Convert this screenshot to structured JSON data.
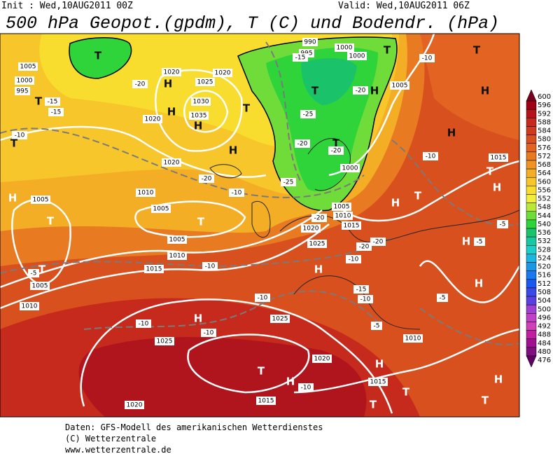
{
  "header": {
    "init": "Init : Wed,10AUG2011 00Z",
    "valid": "Valid: Wed,10AUG2011 06Z",
    "title": "500 hPa Geopot.(gpdm), T (C) und Bodendr. (hPa)"
  },
  "colorbar": [
    {
      "value": 600,
      "color": "#7a0020"
    },
    {
      "value": 596,
      "color": "#9e0016"
    },
    {
      "value": 592,
      "color": "#b5121b"
    },
    {
      "value": 588,
      "color": "#c62a1c"
    },
    {
      "value": 584,
      "color": "#d03a1e"
    },
    {
      "value": 580,
      "color": "#d9501f"
    },
    {
      "value": 576,
      "color": "#e26322"
    },
    {
      "value": 572,
      "color": "#e87a22"
    },
    {
      "value": 568,
      "color": "#ef9424"
    },
    {
      "value": 564,
      "color": "#f4ae26"
    },
    {
      "value": 560,
      "color": "#f7c62a"
    },
    {
      "value": 556,
      "color": "#f8dd2e"
    },
    {
      "value": 552,
      "color": "#f2ef3a"
    },
    {
      "value": 548,
      "color": "#b8e83a"
    },
    {
      "value": 544,
      "color": "#6fdc3a"
    },
    {
      "value": 540,
      "color": "#2ed43a"
    },
    {
      "value": 536,
      "color": "#1ac36a"
    },
    {
      "value": 532,
      "color": "#18c8a0"
    },
    {
      "value": 528,
      "color": "#1ad0c8"
    },
    {
      "value": 524,
      "color": "#1ab8e0"
    },
    {
      "value": 520,
      "color": "#1a98e8"
    },
    {
      "value": 516,
      "color": "#1a78f0"
    },
    {
      "value": 512,
      "color": "#1a58f0"
    },
    {
      "value": 508,
      "color": "#3a48e8"
    },
    {
      "value": 504,
      "color": "#5a40e0"
    },
    {
      "value": 500,
      "color": "#a040d0"
    },
    {
      "value": 496,
      "color": "#c040c8"
    },
    {
      "value": 492,
      "color": "#d040b8"
    },
    {
      "value": 488,
      "color": "#c020a0"
    },
    {
      "value": 484,
      "color": "#a01090"
    },
    {
      "value": 480,
      "color": "#801080"
    },
    {
      "value": 476,
      "color": "#600060"
    }
  ],
  "map": {
    "labels": [
      "T",
      "1005",
      "1000",
      "995",
      "T",
      "-15",
      "-15",
      "1020",
      "H",
      "1025",
      "1020",
      "-20",
      "T",
      "1030",
      "H",
      "1035",
      "1020",
      "H",
      "-10",
      "T",
      "H",
      "1020",
      "-20",
      "990",
      "995",
      "1000",
      "1000",
      "T",
      "-15",
      "T",
      "H",
      "-20",
      "1005",
      "-25",
      "-20",
      "T",
      "-20",
      "1000",
      "-25",
      "1010",
      "-10",
      "1005",
      "T",
      "H",
      "1005",
      "T",
      "H",
      "H",
      "-10",
      "T",
      "-10",
      "1015",
      "T",
      "H",
      "T",
      "H",
      "1005",
      "1010",
      "1015",
      "1020",
      "-20",
      "1025",
      "-20",
      "-20",
      "1005",
      "1010",
      "-10",
      "1015",
      "T",
      "-5",
      "1005",
      "1010",
      "H",
      "-10",
      "-5",
      "-5",
      "H",
      "H",
      "-5",
      "-15",
      "-10",
      "-10",
      "H",
      "1025",
      "-10",
      "-5",
      "-10",
      "1025",
      "1010",
      "1020",
      "H",
      "T",
      "H",
      "-10",
      "1015",
      "T",
      "H",
      "T",
      "1020",
      "T",
      "1015"
    ]
  },
  "footer": [
    "Daten: GFS-Modell des amerikanischen Wetterdienstes",
    "(C) Wetterzentrale",
    "www.wetterzentrale.de"
  ]
}
